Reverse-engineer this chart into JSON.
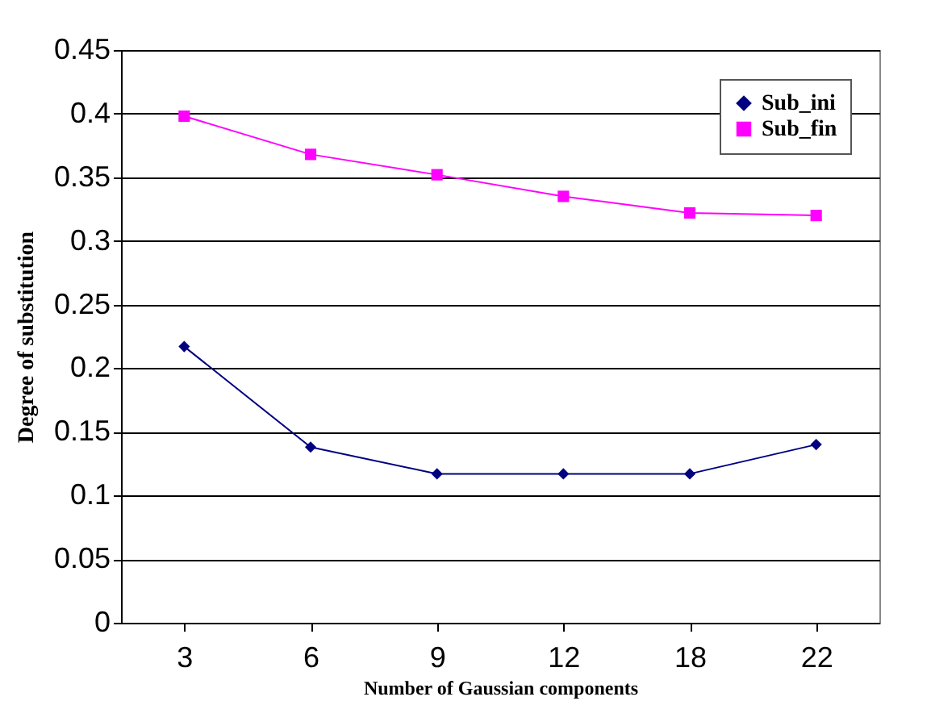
{
  "chart_data": {
    "type": "line",
    "xlabel": "Number of Gaussian components",
    "ylabel": "Degree of substitution",
    "categories": [
      "3",
      "6",
      "9",
      "12",
      "18",
      "22"
    ],
    "series": [
      {
        "name": "Sub_ini",
        "color": "#000080",
        "marker": "diamond",
        "values": [
          0.217,
          0.138,
          0.117,
          0.117,
          0.117,
          0.14
        ]
      },
      {
        "name": "Sub_fin",
        "color": "#ff00ff",
        "marker": "square",
        "values": [
          0.398,
          0.368,
          0.352,
          0.335,
          0.322,
          0.32
        ]
      }
    ],
    "ylim": [
      0,
      0.45
    ],
    "yticks": [
      0,
      0.05,
      0.1,
      0.15,
      0.2,
      0.25,
      0.3,
      0.35,
      0.4,
      0.45
    ],
    "grid": "y",
    "legend": "top right"
  }
}
